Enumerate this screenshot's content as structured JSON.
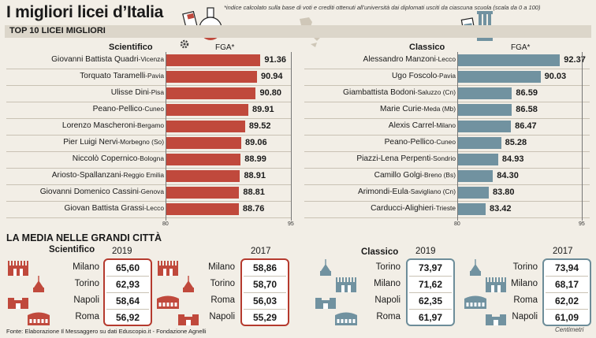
{
  "header": {
    "title": "I migliori licei d’Italia",
    "note": "*indice calcolato sulla base di voti e crediti ottenuti all’università dai diplomati usciti da ciascuna scuola (scala da 0 a 100)",
    "strip_label": "TOP 10 LICEI MIGLIORI"
  },
  "colors": {
    "scientifico": "#c0493c",
    "classico": "#7192a0",
    "red_border": "#b53a2e",
    "blue_border": "#6d8d99"
  },
  "chart_data": [
    {
      "type": "bar",
      "orientation": "horizontal",
      "title": "Scientifico",
      "xlabel": "FGA*",
      "xlim": [
        80,
        95
      ],
      "ticks": [
        "80",
        "95"
      ],
      "series": [
        {
          "name": "FGA*",
          "values": [
            91.36,
            90.94,
            90.8,
            89.91,
            89.52,
            89.06,
            88.99,
            88.91,
            88.81,
            88.76
          ],
          "labels": [
            "91.36",
            "90.94",
            "90.80",
            "89.91",
            "89.52",
            "89.06",
            "88.99",
            "88.91",
            "88.81",
            "88.76"
          ]
        }
      ],
      "categories": [
        {
          "name": "Giovanni Battista Quadri",
          "city": "Vicenza"
        },
        {
          "name": "Torquato Taramelli",
          "city": "Pavia"
        },
        {
          "name": "Ulisse Dini",
          "city": "Pisa"
        },
        {
          "name": "Peano-Pellico",
          "city": "Cuneo"
        },
        {
          "name": "Lorenzo Mascheroni",
          "city": "Bergamo"
        },
        {
          "name": "Pier Luigi Nervi",
          "city": "Morbegno (So)"
        },
        {
          "name": "Niccolò Copernico",
          "city": "Bologna"
        },
        {
          "name": "Ariosto-Spallanzani",
          "city": "Reggio Emilia"
        },
        {
          "name": "Giovanni Domenico Cassini",
          "city": "Genova"
        },
        {
          "name": "Giovan Battista Grassi",
          "city": "Lecco"
        }
      ]
    },
    {
      "type": "bar",
      "orientation": "horizontal",
      "title": "Classico",
      "xlabel": "FGA*",
      "xlim": [
        80,
        95
      ],
      "ticks": [
        "80",
        "95"
      ],
      "series": [
        {
          "name": "FGA*",
          "values": [
            92.37,
            90.03,
            86.59,
            86.58,
            86.47,
            85.28,
            84.93,
            84.3,
            83.8,
            83.42
          ],
          "labels": [
            "92.37",
            "90.03",
            "86.59",
            "86.58",
            "86.47",
            "85.28",
            "84.93",
            "84.30",
            "83.80",
            "83.42"
          ]
        }
      ],
      "categories": [
        {
          "name": "Alessandro Manzoni",
          "city": "Lecco"
        },
        {
          "name": "Ugo Foscolo",
          "city": "Pavia"
        },
        {
          "name": "Giambattista Bodoni",
          "city": "Saluzzo (Cn)"
        },
        {
          "name": "Marie Curie",
          "city": "Meda (Mb)"
        },
        {
          "name": "Alexis Carrel",
          "city": "Milano"
        },
        {
          "name": "Peano-Pellico",
          "city": "Cuneo"
        },
        {
          "name": "Piazzi-Lena Perpenti",
          "city": "Sondrio"
        },
        {
          "name": "Camillo Golgi",
          "city": "Breno (Bs)"
        },
        {
          "name": "Arimondi-Eula",
          "city": "Savigliano (Cn)"
        },
        {
          "name": "Carducci-Alighieri",
          "city": "Trieste"
        }
      ]
    }
  ],
  "media": {
    "title": "LA MEDIA NELLE GRANDI CITTÀ",
    "scientifico": {
      "label": "Scientifico",
      "y2019": {
        "year": "2019",
        "rows": [
          {
            "city": "Milano",
            "value": "65,60",
            "icon": "duomo-icon"
          },
          {
            "city": "Torino",
            "value": "62,93",
            "icon": "mole-icon"
          },
          {
            "city": "Napoli",
            "value": "58,64",
            "icon": "castle-icon"
          },
          {
            "city": "Roma",
            "value": "56,92",
            "icon": "colosseum-icon"
          }
        ]
      },
      "y2017": {
        "year": "2017",
        "rows": [
          {
            "city": "Milano",
            "value": "58,86",
            "icon": "duomo-icon"
          },
          {
            "city": "Torino",
            "value": "58,70",
            "icon": "mole-icon"
          },
          {
            "city": "Roma",
            "value": "56,03",
            "icon": "colosseum-icon"
          },
          {
            "city": "Napoli",
            "value": "55,29",
            "icon": "castle-icon"
          }
        ]
      }
    },
    "classico": {
      "label": "Classico",
      "y2019": {
        "year": "2019",
        "rows": [
          {
            "city": "Torino",
            "value": "73,97",
            "icon": "mole-icon"
          },
          {
            "city": "Milano",
            "value": "71,62",
            "icon": "duomo-icon"
          },
          {
            "city": "Napoli",
            "value": "62,35",
            "icon": "castle-icon"
          },
          {
            "city": "Roma",
            "value": "61,97",
            "icon": "colosseum-icon"
          }
        ]
      },
      "y2017": {
        "year": "2017",
        "rows": [
          {
            "city": "Torino",
            "value": "73,94",
            "icon": "mole-icon"
          },
          {
            "city": "Milano",
            "value": "68,17",
            "icon": "duomo-icon"
          },
          {
            "city": "Roma",
            "value": "62,02",
            "icon": "colosseum-icon"
          },
          {
            "city": "Napoli",
            "value": "61,09",
            "icon": "castle-icon"
          }
        ]
      }
    }
  },
  "footer": {
    "source": "Fonte: Elaborazione Il Messaggero su dati Eduscopio.it - Fondazione Agnelli",
    "brand": "Centimetri"
  }
}
